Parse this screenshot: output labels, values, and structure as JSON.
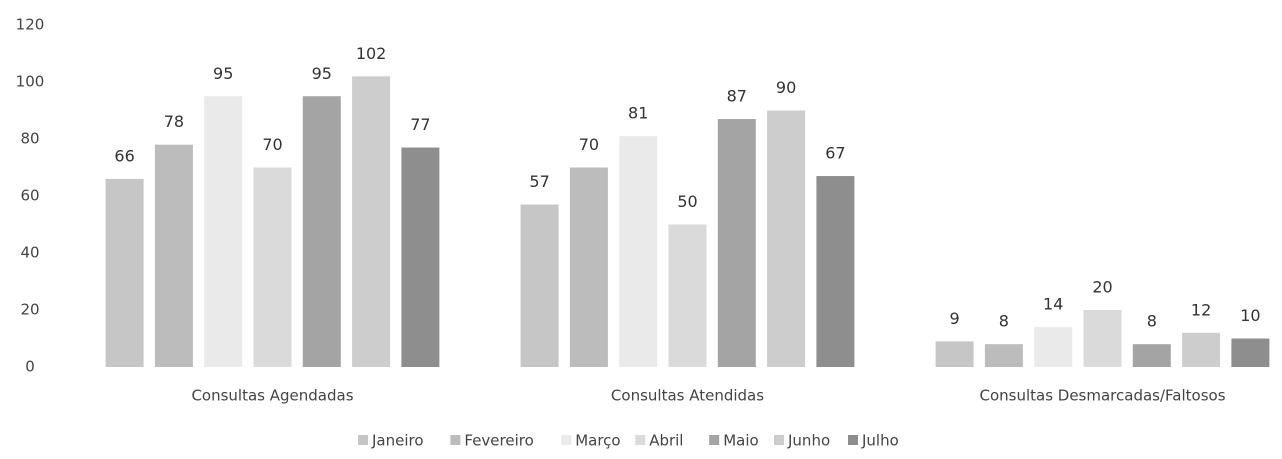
{
  "chart_data": {
    "type": "bar",
    "categories": [
      "Consultas Agendadas",
      "Consultas Atendidas",
      "Consultas Desmarcadas/Faltosos"
    ],
    "series": [
      {
        "name": "Janeiro",
        "color": "#c6c6c6",
        "values": [
          66,
          57,
          9
        ]
      },
      {
        "name": "Fevereiro",
        "color": "#bcbcbc",
        "values": [
          78,
          70,
          8
        ]
      },
      {
        "name": "Março",
        "color": "#eaeaea",
        "values": [
          95,
          81,
          14
        ]
      },
      {
        "name": "Abril",
        "color": "#dadada",
        "values": [
          70,
          50,
          20
        ]
      },
      {
        "name": "Maio",
        "color": "#a4a4a4",
        "values": [
          95,
          87,
          8
        ]
      },
      {
        "name": "Junho",
        "color": "#cdcdcd",
        "values": [
          102,
          90,
          12
        ]
      },
      {
        "name": "Julho",
        "color": "#8e8e8e",
        "values": [
          77,
          67,
          10
        ]
      }
    ],
    "ylim": [
      0,
      120
    ],
    "yticks": [
      0,
      20,
      40,
      60,
      80,
      100,
      120
    ],
    "grid": false,
    "legend": "bottom"
  }
}
